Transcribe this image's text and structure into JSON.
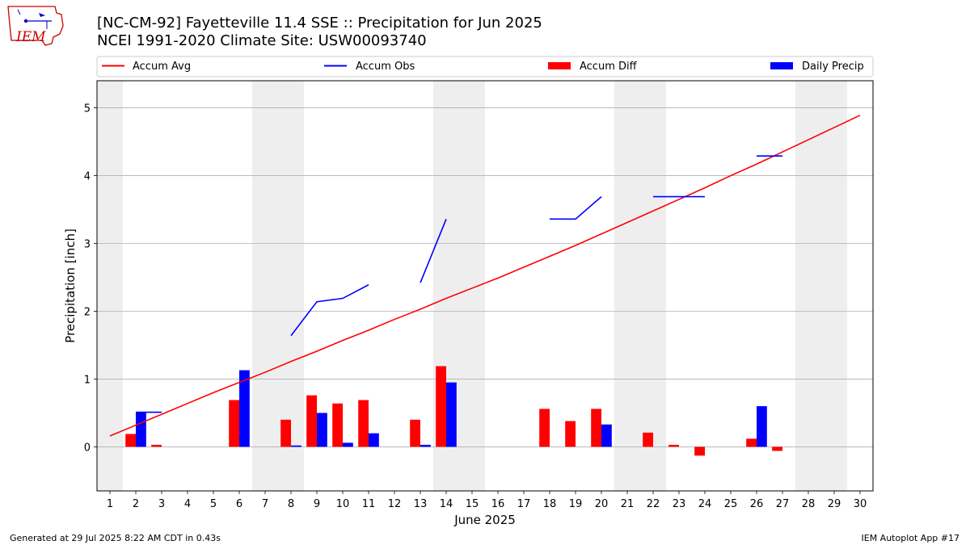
{
  "header": {
    "logo_text": "IEM",
    "title_line1": "[NC-CM-92] Fayetteville 11.4 SSE :: Precipitation for Jun 2025",
    "title_line2": "NCEI 1991-2020 Climate Site: USW00093740"
  },
  "footer": {
    "generated": "Generated at 29 Jul 2025 8:22 AM CDT in 0.43s",
    "app": "IEM Autoplot App #17"
  },
  "colors": {
    "avg": "#ff0000",
    "obs": "#0000ff",
    "diff": "#ff0000",
    "daily": "#0000ff",
    "weekend": "#eeeeee",
    "grid": "#b0b0b0"
  },
  "chart_data": {
    "type": "bar",
    "xlabel": "June 2025",
    "ylabel": "Precipitation [inch]",
    "xlim": [
      0.5,
      30.5
    ],
    "ylim": [
      -0.65,
      5.4
    ],
    "yticks": [
      0,
      1,
      2,
      3,
      4,
      5
    ],
    "grid": "horizontal",
    "legend_position": "top",
    "x": [
      1,
      2,
      3,
      4,
      5,
      6,
      7,
      8,
      9,
      10,
      11,
      12,
      13,
      14,
      15,
      16,
      17,
      18,
      19,
      20,
      21,
      22,
      23,
      24,
      25,
      26,
      27,
      28,
      29,
      30
    ],
    "weekend_days": [
      1,
      7,
      8,
      14,
      15,
      21,
      22,
      28,
      29
    ],
    "legend": [
      "Accum Avg",
      "Accum Obs",
      "Accum Diff",
      "Daily Precip"
    ],
    "series": [
      {
        "name": "Accum Avg",
        "kind": "line",
        "values": [
          0.16,
          0.32,
          0.48,
          0.64,
          0.8,
          0.95,
          1.1,
          1.26,
          1.41,
          1.57,
          1.72,
          1.88,
          2.03,
          2.19,
          2.34,
          2.49,
          2.65,
          2.81,
          2.97,
          3.14,
          3.31,
          3.48,
          3.65,
          3.82,
          4.0,
          4.17,
          4.35,
          4.53,
          4.71,
          4.89
        ]
      },
      {
        "name": "Accum Obs",
        "kind": "line",
        "values": [
          null,
          0.51,
          0.51,
          null,
          null,
          null,
          null,
          1.64,
          2.14,
          2.19,
          2.39,
          null,
          2.42,
          3.36,
          null,
          null,
          null,
          3.36,
          3.36,
          3.69,
          null,
          3.69,
          3.69,
          3.69,
          null,
          4.29,
          4.29,
          null,
          null,
          null
        ]
      },
      {
        "name": "Accum Diff",
        "kind": "bar",
        "values": [
          0,
          0.19,
          0.03,
          0,
          0,
          0.69,
          0,
          0.4,
          0.76,
          0.64,
          0.69,
          0,
          0.4,
          1.19,
          0,
          0,
          0,
          0.56,
          0.38,
          0.56,
          0,
          0.21,
          0.03,
          -0.13,
          0,
          0.12,
          -0.06,
          0,
          0,
          0
        ]
      },
      {
        "name": "Daily Precip",
        "kind": "bar",
        "values": [
          0,
          0.51,
          0,
          0,
          0,
          1.13,
          0,
          0.02,
          0.5,
          0.06,
          0.2,
          0,
          0.03,
          0.95,
          0,
          0,
          0,
          0,
          0,
          0.33,
          0,
          0,
          0,
          0,
          0,
          0.6,
          0,
          0,
          0,
          0
        ]
      }
    ]
  }
}
